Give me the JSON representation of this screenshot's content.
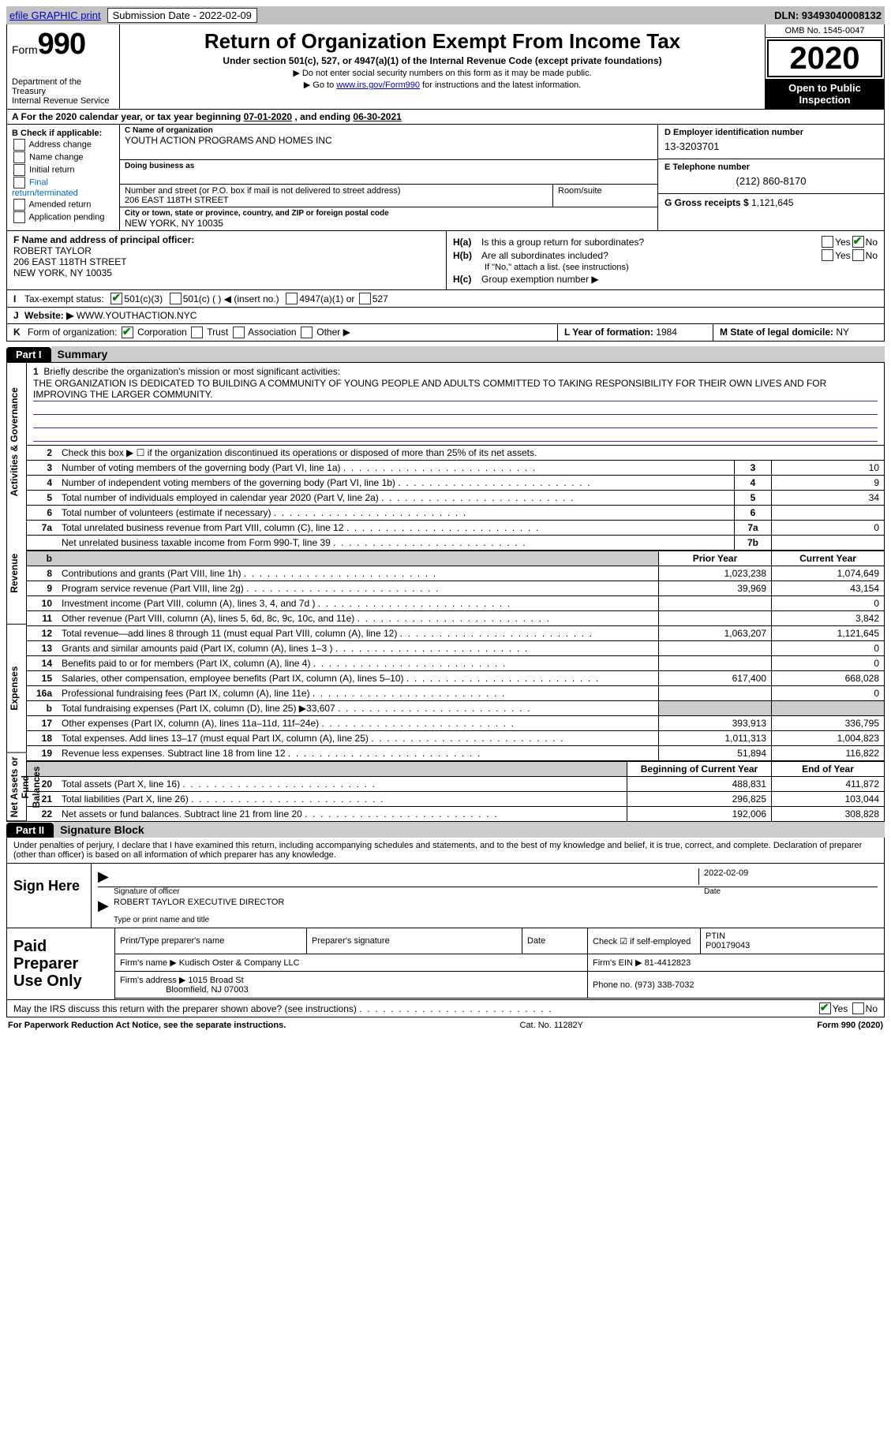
{
  "topbar": {
    "efile": "efile GRAPHIC print",
    "sub_label": "Submission Date - 2022-02-09",
    "dln": "DLN: 93493040008132"
  },
  "header": {
    "form_word": "Form",
    "form_num": "990",
    "dept": "Department of the Treasury\nInternal Revenue Service",
    "title": "Return of Organization Exempt From Income Tax",
    "subtitle": "Under section 501(c), 527, or 4947(a)(1) of the Internal Revenue Code (except private foundations)",
    "note1": "▶ Do not enter social security numbers on this form as it may be made public.",
    "note2_a": "▶ Go to ",
    "note2_link": "www.irs.gov/Form990",
    "note2_b": " for instructions and the latest information.",
    "omb": "OMB No. 1545-0047",
    "year": "2020",
    "open": "Open to Public Inspection"
  },
  "period": {
    "text_a": "A For the 2020 calendar year, or tax year beginning ",
    "begin": "07-01-2020",
    "text_b": " , and ending ",
    "end": "06-30-2021"
  },
  "boxB": {
    "label": "B Check if applicable:",
    "items": [
      "Address change",
      "Name change",
      "Initial return",
      "Final return/terminated",
      "Amended return",
      "Application pending"
    ]
  },
  "boxC": {
    "name_lbl": "C Name of organization",
    "name": "YOUTH ACTION PROGRAMS AND HOMES INC",
    "dba_lbl": "Doing business as",
    "addr_lbl": "Number and street (or P.O. box if mail is not delivered to street address)",
    "addr": "206 EAST 118TH STREET",
    "room_lbl": "Room/suite",
    "city_lbl": "City or town, state or province, country, and ZIP or foreign postal code",
    "city": "NEW YORK, NY  10035"
  },
  "boxD": {
    "lbl": "D Employer identification number",
    "val": "13-3203701"
  },
  "boxE": {
    "lbl": "E Telephone number",
    "val": "(212) 860-8170"
  },
  "boxG": {
    "lbl": "G Gross receipts $",
    "val": "1,121,645"
  },
  "boxF": {
    "lbl": "F Name and address of principal officer:",
    "name": "ROBERT TAYLOR",
    "addr1": "206 EAST 118TH STREET",
    "addr2": "NEW YORK, NY 10035"
  },
  "boxH": {
    "a_q": "Is this a group return for subordinates?",
    "a_pre": "H(a)",
    "b_pre": "H(b)",
    "b_q": "Are all subordinates included?",
    "b_note": "If \"No,\" attach a list. (see instructions)",
    "c_pre": "H(c)",
    "c_q": "Group exemption number ▶",
    "yes": "Yes",
    "no": "No"
  },
  "boxI": {
    "lead": "I",
    "lbl": "Tax-exempt status:",
    "o1": "501(c)(3)",
    "o2": "501(c) (   ) ◀ (insert no.)",
    "o3": "4947(a)(1) or",
    "o4": "527"
  },
  "boxJ": {
    "lead": "J",
    "lbl": "Website: ▶",
    "val": "WWW.YOUTHACTION.NYC"
  },
  "boxK": {
    "lead": "K",
    "lbl": "Form of organization:",
    "opts": [
      "Corporation",
      "Trust",
      "Association",
      "Other ▶"
    ]
  },
  "boxL": {
    "lbl": "L Year of formation:",
    "val": "1984"
  },
  "boxM": {
    "lbl": "M State of legal domicile:",
    "val": "NY"
  },
  "part1": {
    "tab": "Part I",
    "title": "Summary",
    "side_ag": "Activities & Governance",
    "side_rev": "Revenue",
    "side_exp": "Expenses",
    "side_net": "Net Assets or Fund Balances",
    "line1_lbl": "Briefly describe the organization's mission or most significant activities:",
    "line1_val": "THE ORGANIZATION IS DEDICATED TO BUILDING A COMMUNITY OF YOUNG PEOPLE AND ADULTS COMMITTED TO TAKING RESPONSIBILITY FOR THEIR OWN LIVES AND FOR IMPROVING THE LARGER COMMUNITY.",
    "line2": "Check this box ▶ ☐ if the organization discontinued its operations or disposed of more than 25% of its net assets.",
    "rows_ag": [
      {
        "n": "3",
        "t": "Number of voting members of the governing body (Part VI, line 1a)",
        "bn": "3",
        "v": "10"
      },
      {
        "n": "4",
        "t": "Number of independent voting members of the governing body (Part VI, line 1b)",
        "bn": "4",
        "v": "9"
      },
      {
        "n": "5",
        "t": "Total number of individuals employed in calendar year 2020 (Part V, line 2a)",
        "bn": "5",
        "v": "34"
      },
      {
        "n": "6",
        "t": "Total number of volunteers (estimate if necessary)",
        "bn": "6",
        "v": ""
      },
      {
        "n": "7a",
        "t": "Total unrelated business revenue from Part VIII, column (C), line 12",
        "bn": "7a",
        "v": "0"
      },
      {
        "n": "",
        "t": "Net unrelated business taxable income from Form 990-T, line 39",
        "bn": "7b",
        "v": ""
      }
    ],
    "hdr_py": "Prior Year",
    "hdr_cy": "Current Year",
    "hdr_bcy": "Beginning of Current Year",
    "hdr_eoy": "End of Year",
    "rows_rev": [
      {
        "n": "8",
        "t": "Contributions and grants (Part VIII, line 1h)",
        "py": "1,023,238",
        "cy": "1,074,649"
      },
      {
        "n": "9",
        "t": "Program service revenue (Part VIII, line 2g)",
        "py": "39,969",
        "cy": "43,154"
      },
      {
        "n": "10",
        "t": "Investment income (Part VIII, column (A), lines 3, 4, and 7d )",
        "py": "",
        "cy": "0"
      },
      {
        "n": "11",
        "t": "Other revenue (Part VIII, column (A), lines 5, 6d, 8c, 9c, 10c, and 11e)",
        "py": "",
        "cy": "3,842"
      },
      {
        "n": "12",
        "t": "Total revenue—add lines 8 through 11 (must equal Part VIII, column (A), line 12)",
        "py": "1,063,207",
        "cy": "1,121,645"
      }
    ],
    "rows_exp": [
      {
        "n": "13",
        "t": "Grants and similar amounts paid (Part IX, column (A), lines 1–3 )",
        "py": "",
        "cy": "0"
      },
      {
        "n": "14",
        "t": "Benefits paid to or for members (Part IX, column (A), line 4)",
        "py": "",
        "cy": "0"
      },
      {
        "n": "15",
        "t": "Salaries, other compensation, employee benefits (Part IX, column (A), lines 5–10)",
        "py": "617,400",
        "cy": "668,028"
      },
      {
        "n": "16a",
        "t": "Professional fundraising fees (Part IX, column (A), line 11e)",
        "py": "",
        "cy": "0"
      },
      {
        "n": "b",
        "t": "Total fundraising expenses (Part IX, column (D), line 25) ▶33,607",
        "py": "SHADE",
        "cy": "SHADE"
      },
      {
        "n": "17",
        "t": "Other expenses (Part IX, column (A), lines 11a–11d, 11f–24e)",
        "py": "393,913",
        "cy": "336,795"
      },
      {
        "n": "18",
        "t": "Total expenses. Add lines 13–17 (must equal Part IX, column (A), line 25)",
        "py": "1,011,313",
        "cy": "1,004,823"
      },
      {
        "n": "19",
        "t": "Revenue less expenses. Subtract line 18 from line 12",
        "py": "51,894",
        "cy": "116,822"
      }
    ],
    "rows_net": [
      {
        "n": "20",
        "t": "Total assets (Part X, line 16)",
        "py": "488,831",
        "cy": "411,872"
      },
      {
        "n": "21",
        "t": "Total liabilities (Part X, line 26)",
        "py": "296,825",
        "cy": "103,044"
      },
      {
        "n": "22",
        "t": "Net assets or fund balances. Subtract line 21 from line 20",
        "py": "192,006",
        "cy": "308,828"
      }
    ]
  },
  "part2": {
    "tab": "Part II",
    "title": "Signature Block",
    "decl": "Under penalties of perjury, I declare that I have examined this return, including accompanying schedules and statements, and to the best of my knowledge and belief, it is true, correct, and complete. Declaration of preparer (other than officer) is based on all information of which preparer has any knowledge.",
    "sign_here": "Sign Here",
    "sig_officer_lbl": "Signature of officer",
    "sig_date_lbl": "Date",
    "sig_date": "2022-02-09",
    "officer_name": "ROBERT TAYLOR  EXECUTIVE DIRECTOR",
    "officer_name_lbl": "Type or print name and title",
    "paid": "Paid Preparer Use Only",
    "p_name_lbl": "Print/Type preparer's name",
    "p_sig_lbl": "Preparer's signature",
    "p_date_lbl": "Date",
    "p_check_lbl": "Check ☑ if self-employed",
    "ptin_lbl": "PTIN",
    "ptin": "P00179043",
    "firm_name_lbl": "Firm's name    ▶",
    "firm_name": "Kudisch Oster & Company LLC",
    "firm_ein_lbl": "Firm's EIN ▶",
    "firm_ein": "81-4412823",
    "firm_addr_lbl": "Firm's address ▶",
    "firm_addr1": "1015 Broad St",
    "firm_addr2": "Bloomfield, NJ  07003",
    "phone_lbl": "Phone no.",
    "phone": "(973) 338-7032",
    "discuss": "May the IRS discuss this return with the preparer shown above? (see instructions)"
  },
  "footer": {
    "left": "For Paperwork Reduction Act Notice, see the separate instructions.",
    "mid": "Cat. No. 11282Y",
    "right": "Form 990 (2020)"
  }
}
